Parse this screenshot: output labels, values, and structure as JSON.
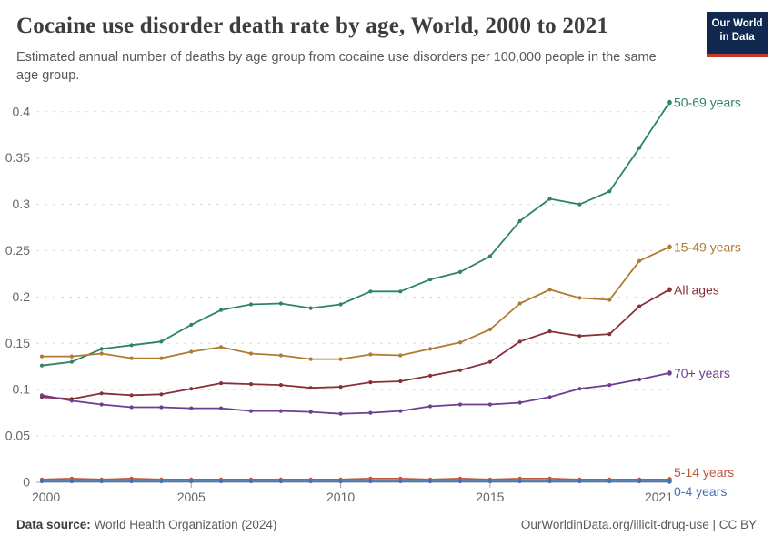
{
  "header": {
    "title": "Cocaine use disorder death rate by age, World, 2000 to 2021",
    "subtitle": "Estimated annual number of deaths by age group from cocaine use disorders per 100,000 people in the same age group.",
    "logo": {
      "line1": "Our World",
      "line2": "in Data",
      "bg_color": "#12294F",
      "accent_color": "#C5392C"
    }
  },
  "footer": {
    "source_label": "Data source:",
    "source_value": " World Health Organization (2024)",
    "link": "OurWorldinData.org/illicit-drug-use | CC BY"
  },
  "chart_data": {
    "type": "line",
    "title": "Cocaine use disorder death rate by age, World, 2000 to 2021",
    "xlabel": "",
    "ylabel": "",
    "x": [
      2000,
      2001,
      2002,
      2003,
      2004,
      2005,
      2006,
      2007,
      2008,
      2009,
      2010,
      2011,
      2012,
      2013,
      2014,
      2015,
      2016,
      2017,
      2018,
      2019,
      2020,
      2021
    ],
    "series": [
      {
        "name": "50-69 years",
        "color": "#2C8465",
        "label_dy": 0,
        "values": [
          0.126,
          0.13,
          0.144,
          0.148,
          0.152,
          0.17,
          0.186,
          0.192,
          0.193,
          0.188,
          0.192,
          0.206,
          0.206,
          0.219,
          0.227,
          0.244,
          0.282,
          0.306,
          0.3,
          0.314,
          0.361,
          0.41
        ]
      },
      {
        "name": "15-49 years",
        "color": "#B07A33",
        "label_dy": 0,
        "values": [
          0.136,
          0.136,
          0.139,
          0.134,
          0.134,
          0.141,
          0.146,
          0.139,
          0.137,
          0.133,
          0.133,
          0.138,
          0.137,
          0.144,
          0.151,
          0.165,
          0.193,
          0.208,
          0.199,
          0.197,
          0.239,
          0.254
        ]
      },
      {
        "name": "All ages",
        "color": "#883039",
        "label_dy": 0,
        "values": [
          0.092,
          0.09,
          0.096,
          0.094,
          0.095,
          0.101,
          0.107,
          0.106,
          0.105,
          0.102,
          0.103,
          0.108,
          0.109,
          0.115,
          0.121,
          0.13,
          0.152,
          0.163,
          0.158,
          0.16,
          0.19,
          0.208
        ]
      },
      {
        "name": "70+ years",
        "color": "#6D3E91",
        "label_dy": 0,
        "values": [
          0.094,
          0.088,
          0.084,
          0.081,
          0.081,
          0.08,
          0.08,
          0.077,
          0.077,
          0.076,
          0.074,
          0.075,
          0.077,
          0.082,
          0.084,
          0.084,
          0.086,
          0.092,
          0.101,
          0.105,
          0.111,
          0.118
        ]
      },
      {
        "name": "5-14 years",
        "color": "#BF563B",
        "label_dy": -8,
        "values": [
          0.003,
          0.004,
          0.003,
          0.004,
          0.003,
          0.003,
          0.003,
          0.003,
          0.003,
          0.003,
          0.003,
          0.004,
          0.004,
          0.003,
          0.004,
          0.003,
          0.004,
          0.004,
          0.003,
          0.003,
          0.003,
          0.003
        ]
      },
      {
        "name": "0-4 years",
        "color": "#4470B2",
        "label_dy": 11,
        "values": [
          0.001,
          0.001,
          0.001,
          0.001,
          0.001,
          0.001,
          0.001,
          0.001,
          0.001,
          0.001,
          0.001,
          0.001,
          0.001,
          0.001,
          0.001,
          0.001,
          0.001,
          0.001,
          0.001,
          0.001,
          0.001,
          0.001
        ]
      }
    ],
    "ylim": [
      0,
      0.4
    ],
    "y_ticks": [
      0,
      0.05,
      0.1,
      0.15,
      0.2,
      0.25,
      0.3,
      0.35,
      0.4
    ],
    "y_tick_labels": [
      "0",
      "0.05",
      "0.1",
      "0.15",
      "0.2",
      "0.25",
      "0.3",
      "0.35",
      "0.4"
    ],
    "x_tick_years": [
      2000,
      2005,
      2010,
      2015,
      2021
    ],
    "x_tick_labels": [
      "2000",
      "2005",
      "2010",
      "2015",
      "2021"
    ],
    "grid": "horizontal-dashed",
    "legend_position": "right-of-line-ends",
    "colors": {
      "grid": "#dcdcdc",
      "axis": "#a3a3a3",
      "tick_text": "#666666"
    }
  }
}
